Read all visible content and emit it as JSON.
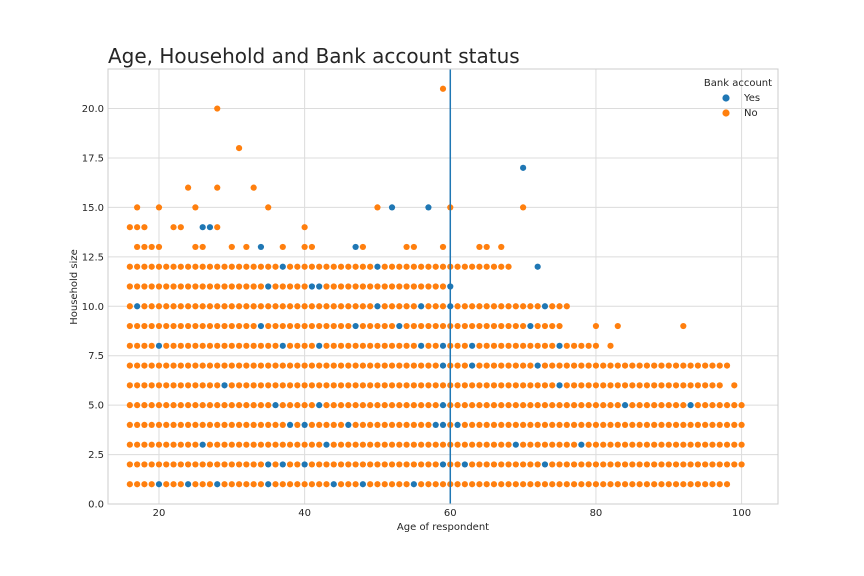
{
  "chart_data": {
    "type": "scatter",
    "title": "Age, Household and Bank account status",
    "xlabel": "Age of respondent",
    "ylabel": "Household size",
    "xlim": [
      13,
      105
    ],
    "ylim": [
      0,
      22
    ],
    "xticks": [
      20,
      40,
      60,
      80,
      100
    ],
    "yticks": [
      0.0,
      2.5,
      5.0,
      7.5,
      10.0,
      12.5,
      15.0,
      17.5,
      20.0
    ],
    "grid": true,
    "vline": {
      "x": 60,
      "color": "#1f77b4"
    },
    "legend": {
      "title": "Bank account",
      "placement": "top-right",
      "entries": [
        {
          "name": "Yes",
          "color": "#1f77b4"
        },
        {
          "name": "No",
          "color": "#ff7f0e"
        }
      ]
    },
    "series": [
      {
        "name": "No",
        "color": "#ff7f0e",
        "ranges": [
          [
            1,
            16,
            98
          ],
          [
            2,
            16,
            100
          ],
          [
            3,
            16,
            100
          ],
          [
            4,
            16,
            100
          ],
          [
            5,
            16,
            100
          ],
          [
            6,
            16,
            95
          ],
          [
            7,
            16,
            98
          ],
          [
            8,
            16,
            79
          ],
          [
            9,
            16,
            75
          ],
          [
            10,
            16,
            75
          ],
          [
            11,
            16,
            60
          ],
          [
            12,
            16,
            68
          ]
        ],
        "points": [
          [
            17,
            15
          ],
          [
            20,
            15
          ],
          [
            28,
            20
          ],
          [
            31,
            18
          ],
          [
            24,
            16
          ],
          [
            28,
            16
          ],
          [
            33,
            16
          ],
          [
            25,
            15
          ],
          [
            35,
            15
          ],
          [
            50,
            15
          ],
          [
            60,
            15
          ],
          [
            70,
            15
          ],
          [
            59,
            21
          ],
          [
            16,
            14
          ],
          [
            17,
            14
          ],
          [
            18,
            14
          ],
          [
            22,
            14
          ],
          [
            23,
            14
          ],
          [
            28,
            14
          ],
          [
            40,
            14
          ],
          [
            17,
            13
          ],
          [
            18,
            13
          ],
          [
            19,
            13
          ],
          [
            20,
            13
          ],
          [
            25,
            13
          ],
          [
            26,
            13
          ],
          [
            30,
            13
          ],
          [
            32,
            13
          ],
          [
            37,
            13
          ],
          [
            40,
            13
          ],
          [
            41,
            13
          ],
          [
            48,
            13
          ],
          [
            54,
            13
          ],
          [
            55,
            13
          ],
          [
            59,
            13
          ],
          [
            64,
            13
          ],
          [
            65,
            13
          ],
          [
            67,
            13
          ],
          [
            65,
            12
          ],
          [
            68,
            12
          ],
          [
            64,
            10
          ],
          [
            70,
            10
          ],
          [
            74,
            10
          ],
          [
            76,
            10
          ],
          [
            62,
            9
          ],
          [
            64,
            9
          ],
          [
            65,
            9
          ],
          [
            69,
            9
          ],
          [
            70,
            9
          ],
          [
            73,
            9
          ],
          [
            80,
            9
          ],
          [
            83,
            9
          ],
          [
            92,
            9
          ],
          [
            80,
            8
          ],
          [
            82,
            8
          ],
          [
            81,
            7
          ],
          [
            83,
            7
          ],
          [
            84,
            7
          ],
          [
            85,
            7
          ],
          [
            87,
            7
          ],
          [
            98,
            7
          ],
          [
            85,
            6
          ],
          [
            88,
            6
          ],
          [
            89,
            6
          ],
          [
            95,
            6
          ],
          [
            96,
            6
          ],
          [
            97,
            6
          ],
          [
            99,
            6
          ]
        ]
      },
      {
        "name": "Yes",
        "color": "#1f77b4",
        "points": [
          [
            52,
            15
          ],
          [
            57,
            15
          ],
          [
            70,
            17
          ],
          [
            26,
            14
          ],
          [
            27,
            14
          ],
          [
            34,
            13
          ],
          [
            47,
            13
          ],
          [
            37,
            12
          ],
          [
            50,
            12
          ],
          [
            72,
            12
          ],
          [
            35,
            11
          ],
          [
            41,
            11
          ],
          [
            42,
            11
          ],
          [
            60,
            11
          ],
          [
            17,
            10
          ],
          [
            50,
            10
          ],
          [
            56,
            10
          ],
          [
            60,
            10
          ],
          [
            73,
            10
          ],
          [
            34,
            9
          ],
          [
            47,
            9
          ],
          [
            53,
            9
          ],
          [
            71,
            9
          ],
          [
            20,
            8
          ],
          [
            37,
            8
          ],
          [
            42,
            8
          ],
          [
            56,
            8
          ],
          [
            59,
            8
          ],
          [
            63,
            8
          ],
          [
            75,
            8
          ],
          [
            72,
            7
          ],
          [
            59,
            7
          ],
          [
            63,
            7
          ],
          [
            29,
            6
          ],
          [
            75,
            6
          ],
          [
            36,
            5
          ],
          [
            42,
            5
          ],
          [
            59,
            5
          ],
          [
            84,
            5
          ],
          [
            93,
            5
          ],
          [
            38,
            4
          ],
          [
            40,
            4
          ],
          [
            46,
            4
          ],
          [
            58,
            4
          ],
          [
            59,
            4
          ],
          [
            61,
            4
          ],
          [
            26,
            3
          ],
          [
            43,
            3
          ],
          [
            69,
            3
          ],
          [
            78,
            3
          ],
          [
            35,
            2
          ],
          [
            37,
            2
          ],
          [
            40,
            2
          ],
          [
            59,
            2
          ],
          [
            62,
            2
          ],
          [
            73,
            2
          ],
          [
            20,
            1
          ],
          [
            24,
            1
          ],
          [
            28,
            1
          ],
          [
            35,
            1
          ],
          [
            44,
            1
          ],
          [
            48,
            1
          ],
          [
            55,
            1
          ]
        ]
      }
    ]
  }
}
